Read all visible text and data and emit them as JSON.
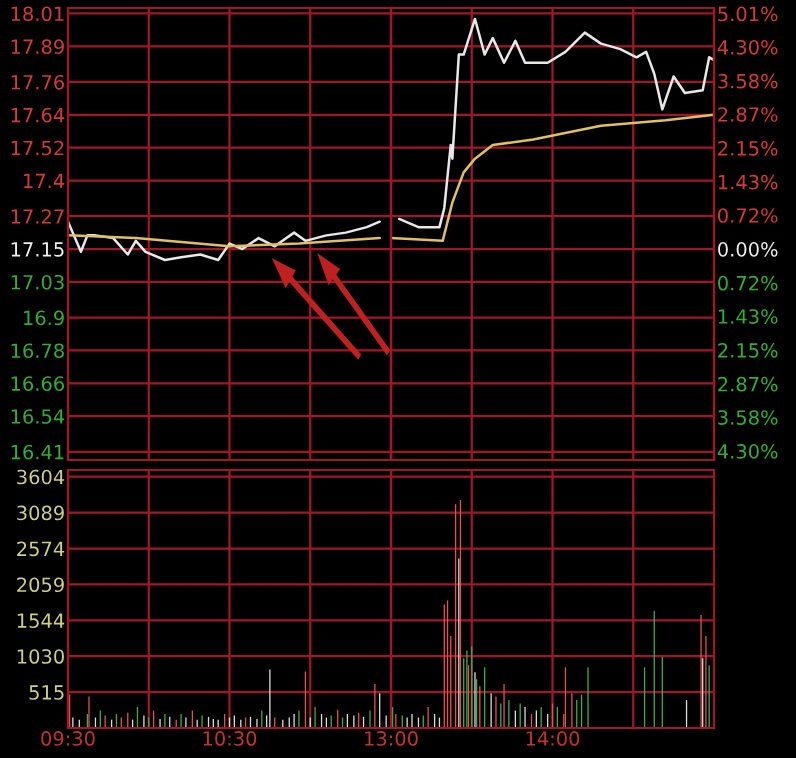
{
  "chart_data": [
    {
      "type": "line",
      "xlim": [
        9.5,
        11.5
      ],
      "xticks": [
        9.5,
        10.0,
        10.5,
        11.0
      ],
      "ylim": [
        16.38,
        18.03
      ],
      "yticks": [
        18.01,
        17.89,
        17.76,
        17.64,
        17.52,
        17.4,
        17.27,
        17.15,
        17.03,
        16.9,
        16.78,
        16.66,
        16.54,
        16.41
      ],
      "grid": true,
      "tick_labels": "y",
      "legend": false,
      "series": [
        {
          "color": "#e8e8e8",
          "x": [
            9.5,
            9.58,
            9.62,
            9.67,
            9.78,
            9.87,
            9.92,
            9.98,
            10.1,
            10.2,
            10.32,
            10.43,
            10.5,
            10.58,
            10.68,
            10.78,
            10.9,
            10.97,
            11.1,
            11.22,
            11.35,
            11.43
          ],
          "values": [
            17.25,
            17.14,
            17.2,
            17.2,
            17.19,
            17.13,
            17.18,
            17.14,
            17.11,
            17.12,
            17.13,
            17.11,
            17.17,
            17.15,
            17.19,
            17.16,
            17.21,
            17.18,
            17.2,
            17.21,
            17.23,
            17.25
          ]
        },
        {
          "color": "#e0c060",
          "x": [
            9.5,
            9.92,
            10.5,
            10.93,
            11.43
          ],
          "values": [
            17.2,
            17.19,
            17.16,
            17.17,
            17.19
          ]
        }
      ]
    },
    {
      "type": "line",
      "xlim": [
        13.0,
        15.0
      ],
      "xticks": [
        13.0,
        13.5,
        14.0,
        14.5
      ],
      "ylim": [
        16.38,
        18.03
      ],
      "yticks": [
        18.01,
        17.89,
        17.76,
        17.64,
        17.52,
        17.4,
        17.27,
        17.15,
        17.03,
        16.9,
        16.78,
        16.66,
        16.54,
        16.41
      ],
      "y2lim": [
        -4.49,
        5.13
      ],
      "y2ticks": [
        {
          "value": 5.01,
          "label": "5.01%"
        },
        {
          "value": 4.3,
          "label": "4.30%"
        },
        {
          "value": 3.58,
          "label": "3.58%"
        },
        {
          "value": 2.87,
          "label": "2.87%"
        },
        {
          "value": 2.15,
          "label": "2.15%"
        },
        {
          "value": 1.43,
          "label": "1.43%"
        },
        {
          "value": 0.72,
          "label": "0.72%"
        },
        {
          "value": 0,
          "label": "0.00%"
        },
        {
          "value": -0.72,
          "label": "0.72%"
        },
        {
          "value": -1.43,
          "label": "1.43%"
        },
        {
          "value": -2.15,
          "label": "2.15%"
        },
        {
          "value": -2.87,
          "label": "2.87%"
        },
        {
          "value": -3.58,
          "label": "3.58%"
        },
        {
          "value": -4.3,
          "label": "4.30%"
        }
      ],
      "grid": true,
      "tick_labels": false,
      "legend": false,
      "series": [
        {
          "color": "#e8e8e8",
          "x": [
            13.05,
            13.17,
            13.3,
            13.33,
            13.37,
            13.38,
            13.42,
            13.45,
            13.52,
            13.58,
            13.63,
            13.7,
            13.77,
            13.83,
            13.97,
            14.08,
            14.2,
            14.3,
            14.42,
            14.52,
            14.58,
            14.63,
            14.68,
            14.75,
            14.82,
            14.93,
            14.97,
            15.0
          ],
          "values": [
            17.26,
            17.23,
            17.23,
            17.3,
            17.53,
            17.48,
            17.86,
            17.86,
            17.99,
            17.86,
            17.92,
            17.83,
            17.91,
            17.83,
            17.83,
            17.87,
            17.94,
            17.9,
            17.88,
            17.85,
            17.87,
            17.79,
            17.66,
            17.78,
            17.72,
            17.73,
            17.85,
            17.84
          ]
        },
        {
          "color": "#e0c060",
          "x": [
            13.0,
            13.32,
            13.38,
            13.45,
            13.52,
            13.63,
            13.88,
            14.3,
            14.7,
            15.0
          ],
          "values": [
            17.19,
            17.18,
            17.32,
            17.43,
            17.48,
            17.53,
            17.55,
            17.6,
            17.62,
            17.64
          ]
        }
      ]
    },
    {
      "type": "bar",
      "xlim": [
        9.5,
        11.5
      ],
      "xticks": [
        {
          "value": 9.5,
          "label": "09:30"
        },
        {
          "value": 10.0,
          "label": null
        },
        {
          "value": 10.5,
          "label": "10:30"
        },
        {
          "value": 11.0,
          "label": null
        }
      ],
      "ylim": [
        0,
        3700
      ],
      "yticks": [
        515,
        1030,
        1544,
        2059,
        2574,
        3089,
        3604
      ],
      "grid": true,
      "legend": false,
      "x": [
        9.51,
        9.53,
        9.57,
        9.62,
        9.63,
        9.67,
        9.7,
        9.73,
        9.77,
        9.8,
        9.83,
        9.87,
        9.9,
        9.93,
        9.97,
        10.0,
        10.03,
        10.07,
        10.1,
        10.13,
        10.17,
        10.2,
        10.23,
        10.27,
        10.3,
        10.33,
        10.37,
        10.4,
        10.43,
        10.47,
        10.5,
        10.53,
        10.57,
        10.6,
        10.63,
        10.67,
        10.7,
        10.73,
        10.75,
        10.78,
        10.83,
        10.87,
        10.9,
        10.93,
        10.97,
        11.0,
        11.03,
        11.07,
        11.1,
        11.13,
        11.17,
        11.2,
        11.23,
        11.27,
        11.3,
        11.33,
        11.37,
        11.4,
        11.43,
        11.47
      ],
      "values": [
        480,
        150,
        120,
        200,
        450,
        150,
        250,
        180,
        120,
        200,
        150,
        220,
        120,
        300,
        180,
        150,
        250,
        130,
        200,
        160,
        120,
        200,
        150,
        250,
        120,
        180,
        160,
        130,
        120,
        200,
        150,
        180,
        120,
        150,
        160,
        130,
        250,
        180,
        840,
        150,
        120,
        150,
        200,
        250,
        810,
        150,
        300,
        200,
        150,
        180,
        260,
        150,
        200,
        180,
        220,
        160,
        250,
        630,
        500,
        180
      ],
      "colors": [
        "#e8504a",
        "#dddddd",
        "#dddddd",
        "#3cb043",
        "#e8504a",
        "#dddddd",
        "#3cb043",
        "#e8504a",
        "#dddddd",
        "#3cb043",
        "#e8504a",
        "#e8504a",
        "#dddddd",
        "#3cb043",
        "#dddddd",
        "#3cb043",
        "#e8504a",
        "#dddddd",
        "#3cb043",
        "#dddddd",
        "#e8504a",
        "#3cb043",
        "#dddddd",
        "#e8504a",
        "#dddddd",
        "#3cb043",
        "#dddddd",
        "#dddddd",
        "#dddddd",
        "#e8504a",
        "#dddddd",
        "#dddddd",
        "#dddddd",
        "#e8504a",
        "#dddddd",
        "#dddddd",
        "#3cb043",
        "#dddddd",
        "#dddddd",
        "#e8504a",
        "#dddddd",
        "#dddddd",
        "#dddddd",
        "#3cb043",
        "#e8504a",
        "#dddddd",
        "#3cb043",
        "#dddddd",
        "#dddddd",
        "#3cb043",
        "#e8504a",
        "#3cb043",
        "#dddddd",
        "#dddddd",
        "#e8504a",
        "#dddddd",
        "#3cb043",
        "#e8504a",
        "#dddddd",
        "#dddddd"
      ]
    },
    {
      "type": "bar",
      "xlim": [
        13.0,
        15.0
      ],
      "xticks": [
        {
          "value": 13.0,
          "label": "13:00"
        },
        {
          "value": 13.5,
          "label": null
        },
        {
          "value": 14.0,
          "label": "14:00"
        },
        {
          "value": 14.5,
          "label": null
        }
      ],
      "ylim": [
        0,
        3700
      ],
      "yticks": [
        515,
        1030,
        1544,
        2059,
        2574,
        3089,
        3604
      ],
      "grid": true,
      "tick_labels": "x",
      "legend": false,
      "x": [
        13.01,
        13.03,
        13.07,
        13.1,
        13.13,
        13.17,
        13.2,
        13.23,
        13.27,
        13.3,
        13.33,
        13.35,
        13.37,
        13.4,
        13.42,
        13.43,
        13.45,
        13.47,
        13.48,
        13.5,
        13.52,
        13.53,
        13.55,
        13.58,
        13.62,
        13.65,
        13.68,
        13.7,
        13.73,
        13.77,
        13.8,
        13.83,
        13.87,
        13.9,
        13.93,
        13.97,
        14.0,
        14.03,
        14.07,
        14.08,
        14.12,
        14.15,
        14.18,
        14.22,
        14.57,
        14.63,
        14.68,
        14.83,
        14.92,
        14.93,
        14.95,
        14.97
      ],
      "values": [
        300,
        200,
        180,
        150,
        200,
        150,
        180,
        300,
        200,
        150,
        1770,
        1830,
        1320,
        3210,
        2430,
        3270,
        1000,
        1110,
        900,
        1170,
        800,
        700,
        600,
        870,
        500,
        450,
        350,
        630,
        400,
        250,
        350,
        300,
        200,
        250,
        300,
        200,
        350,
        300,
        200,
        870,
        500,
        400,
        480,
        870,
        870,
        1680,
        1020,
        400,
        1620,
        1000,
        1320,
        900
      ],
      "colors": [
        "#3cb043",
        "#e8504a",
        "#3cb043",
        "#dddddd",
        "#dddddd",
        "#dddddd",
        "#3cb043",
        "#e8504a",
        "#dddddd",
        "#dddddd",
        "#e8504a",
        "#e8504a",
        "#e8504a",
        "#e8504a",
        "#dddddd",
        "#e8504a",
        "#3cb043",
        "#3cb043",
        "#e8504a",
        "#3cb043",
        "#dddddd",
        "#3cb043",
        "#e8504a",
        "#3cb043",
        "#dddddd",
        "#e8504a",
        "#3cb043",
        "#e8504a",
        "#3cb043",
        "#dddddd",
        "#3cb043",
        "#dddddd",
        "#e8504a",
        "#dddddd",
        "#3cb043",
        "#dddddd",
        "#e8504a",
        "#3cb043",
        "#e8504a",
        "#e8504a",
        "#e8504a",
        "#3cb043",
        "#3cb043",
        "#3cb043",
        "#3cb043",
        "#3cb043",
        "#3cb043",
        "#dddddd",
        "#e8504a",
        "#dddddd",
        "#e8504a",
        "#3cb043"
      ]
    }
  ]
}
